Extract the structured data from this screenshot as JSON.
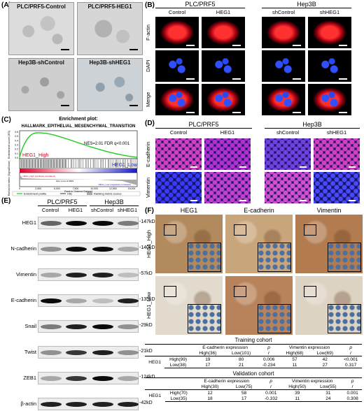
{
  "panel_a": {
    "label": "(A)",
    "images": [
      "PLC/PRF5-Control",
      "PLC/PRF5-HEG1",
      "Hep3B-shControl",
      "Hep3B-shHEG1"
    ]
  },
  "panel_b": {
    "label": "(B)",
    "groups": [
      "PLC/PRF5",
      "Hep3B"
    ],
    "columns": [
      "Control",
      "HEG1",
      "shControl",
      "shHEG1"
    ],
    "rows": [
      "F-actin",
      "DAPI",
      "Merge"
    ]
  },
  "panel_c": {
    "label": "(C)",
    "title": "Enrichment plot:",
    "subtitle": "HALLMARK_EPITHELIAL_MESENCHYMAL_TRANSITION",
    "stat": "NES=2.01  FDR q<0.001",
    "high_label": "HEG1_High",
    "low_label": "HEG1_Low",
    "es_axis": "Enrichment score (ES)",
    "metric_axis": "Ranked list metric (Signal2Noise)",
    "x_axis": "Rank in Ordered Dataset",
    "es_ticks": [
      "0.6",
      "0.5",
      "0.4",
      "0.3",
      "0.2",
      "0.1",
      "0.0"
    ],
    "x_ticks": [
      "0",
      "2,500",
      "5,000",
      "7,500",
      "10,000",
      "12,500",
      "15,000"
    ],
    "zero_cross": "Zero cross at 9829",
    "pos_note": "'HEG1_High' (positively correlated)",
    "neg_note": "'HEG1_Low' (negatively correlated)",
    "legend": [
      "Enrichment profile",
      "Hits",
      "Ranking metric scores"
    ]
  },
  "panel_d": {
    "label": "(D)",
    "groups": [
      "PLC/PRF5",
      "Hep3B"
    ],
    "columns": [
      "Control",
      "HEG1",
      "shControl",
      "shHEG1"
    ],
    "rows": [
      "E-cadherin",
      "Vimentin"
    ]
  },
  "panel_e": {
    "label": "(E)",
    "groups": [
      "PLC/PRF5",
      "Hep3B"
    ],
    "columns": [
      "Control",
      "HEG1",
      "shControl",
      "shHEG1"
    ],
    "rows": [
      "HEG1",
      "N-cadherin",
      "Vimentin",
      "E-cadherin",
      "Snail",
      "Twist",
      "ZEB1",
      "β-actin"
    ],
    "sizes": [
      "-147kD",
      "-140kD",
      "-57kD",
      "-135kD",
      "-29kD",
      "-21kD",
      "-124kD",
      "-42kD"
    ]
  },
  "panel_f": {
    "label": "(F)",
    "columns": [
      "HEG1",
      "E-cadherin",
      "Vimentin"
    ],
    "rows": [
      "HEG1_High",
      "HEG1_Low"
    ],
    "tables": [
      {
        "title": "Training cohort",
        "headers": [
          "E-cadherin expression",
          "p",
          "Vimentin expression",
          "p"
        ],
        "subheaders": [
          "High(36)",
          "Low(101)",
          "r",
          "High(68)",
          "Low(69)",
          "r"
        ],
        "row_group": "HEG1",
        "rows": [
          {
            "label": "High(99)",
            "cells": [
              19,
              80,
              0.006,
              57,
              42,
              "<0.001"
            ]
          },
          {
            "label": "Low(38)",
            "cells": [
              17,
              21,
              -0.234,
              11,
              27,
              0.317
            ]
          }
        ]
      },
      {
        "title": "Validation cohort",
        "headers": [
          "E-cadherin expression",
          "p",
          "Vimentin expression",
          "p"
        ],
        "subheaders": [
          "High(30)",
          "Low(75)",
          "r",
          "High(50)",
          "Low(55)",
          "r"
        ],
        "row_group": "HEG1",
        "rows": [
          {
            "label": "High(70)",
            "cells": [
              12,
              58,
              0.001,
              39,
              31,
              0.001
            ]
          },
          {
            "label": "Low(35)",
            "cells": [
              18,
              17,
              -0.332,
              11,
              24,
              0.308
            ]
          }
        ]
      }
    ]
  }
}
